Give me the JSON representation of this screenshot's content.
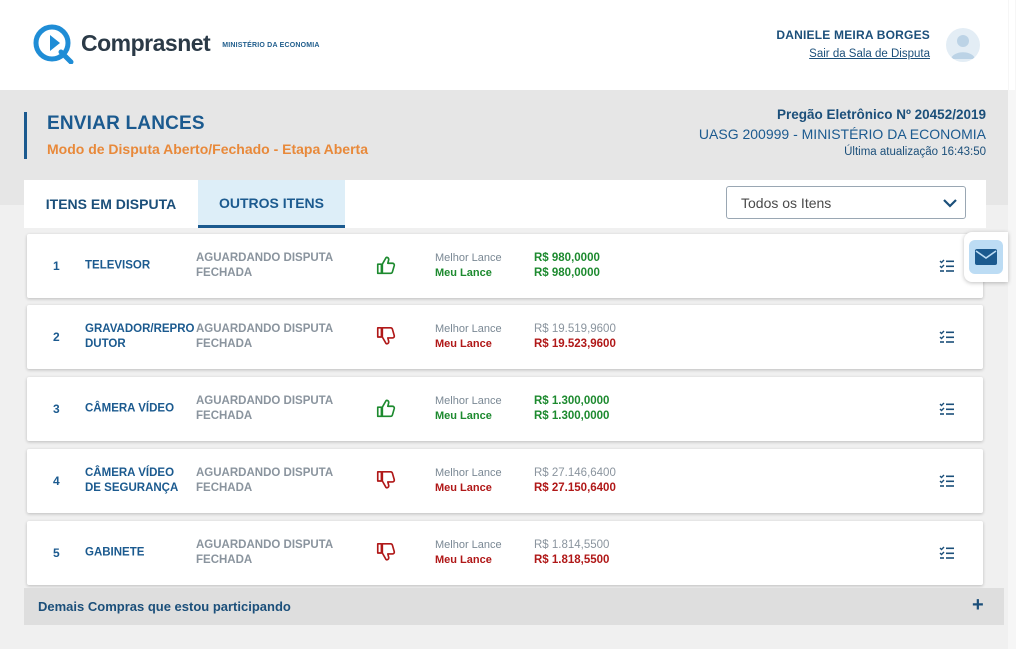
{
  "header": {
    "logo_text": "Comprasnet",
    "logo_subtitle": "MINISTÉRIO DA ECONOMIA",
    "user_name": "DANIELE MEIRA BORGES",
    "exit_link": "Sair da Sala de Disputa"
  },
  "page": {
    "title": "ENVIAR LANCES",
    "subtitle": "Modo de Disputa Aberto/Fechado - Etapa Aberta",
    "pregao": "Pregão Eletrônico Nº 20452/2019",
    "uasg": "UASG 200999 - MINISTÉRIO DA ECONOMIA",
    "last_update": "Última atualização 16:43:50"
  },
  "tabs": [
    {
      "label": "ITENS EM DISPUTA",
      "active": false
    },
    {
      "label": "OUTROS ITENS",
      "active": true
    }
  ],
  "filter": {
    "selected": "Todos os Itens"
  },
  "labels": {
    "melhor": "Melhor Lance",
    "meu": "Meu Lance"
  },
  "items": [
    {
      "num": "1",
      "name": "TELEVISOR",
      "status": "AGUARDANDO DISPUTA FECHADA",
      "winning": true,
      "icon": "thumbs-up-icon",
      "melhor": "R$ 980,0000",
      "meu": "R$ 980,0000"
    },
    {
      "num": "2",
      "name": "GRAVADOR/REPRO DUTOR",
      "status": "AGUARDANDO DISPUTA FECHADA",
      "winning": false,
      "icon": "thumbs-down-icon",
      "melhor": "R$ 19.519,9600",
      "meu": "R$ 19.523,9600"
    },
    {
      "num": "3",
      "name": "CÂMERA VÍDEO",
      "status": "AGUARDANDO DISPUTA FECHADA",
      "winning": true,
      "icon": "thumbs-up-icon",
      "melhor": "R$ 1.300,0000",
      "meu": "R$ 1.300,0000"
    },
    {
      "num": "4",
      "name": "CÂMERA VÍDEO DE SEGURANÇA",
      "status": "AGUARDANDO DISPUTA FECHADA",
      "winning": false,
      "icon": "thumbs-down-icon",
      "melhor": "R$ 27.146,6400",
      "meu": "R$ 27.150,6400"
    },
    {
      "num": "5",
      "name": "GABINETE",
      "status": "AGUARDANDO DISPUTA FECHADA",
      "winning": false,
      "icon": "thumbs-down-icon",
      "melhor": "R$ 1.814,5500",
      "meu": "R$ 1.818,5500"
    }
  ],
  "footer": {
    "demais": "Demais Compras que estou participando",
    "expand": "+"
  },
  "colors": {
    "primary": "#1b5a8f",
    "accent": "#e8893a",
    "win": "#1d8a2f",
    "lose": "#b01818"
  }
}
